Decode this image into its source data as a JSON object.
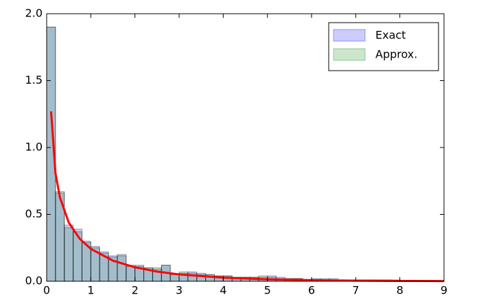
{
  "chart_data": {
    "type": "histogram",
    "bins": [
      0,
      0.2,
      0.4,
      0.6,
      0.8,
      1.0,
      1.2,
      1.4,
      1.6,
      1.8,
      2.0,
      2.2,
      2.4,
      2.6,
      2.8,
      3.0,
      3.2,
      3.4,
      3.6,
      3.8,
      4.0,
      4.2,
      4.4,
      4.6,
      4.8,
      5.0,
      5.2,
      5.4,
      5.6,
      5.8,
      6.0,
      6.2,
      6.4,
      6.6,
      6.8,
      7.0,
      7.2,
      7.4,
      7.6,
      7.8,
      8.0,
      8.2,
      8.4,
      8.6,
      8.8,
      9.0
    ],
    "series": [
      {
        "name": "Exact",
        "color": "#0000ff",
        "values": [
          1.9,
          0.66,
          0.42,
          0.39,
          0.3,
          0.26,
          0.22,
          0.19,
          0.2,
          0.12,
          0.12,
          0.1,
          0.09,
          0.12,
          0.05,
          0.06,
          0.07,
          0.06,
          0.05,
          0.04,
          0.04,
          0.03,
          0.03,
          0.03,
          0.03,
          0.04,
          0.03,
          0.02,
          0.02,
          0.01,
          0.02,
          0.01,
          0.02,
          0.01,
          0.01,
          0.01,
          0.01,
          0.01,
          0.01,
          0.01,
          0.005,
          0.005,
          0.005,
          0.005,
          0.005
        ]
      },
      {
        "name": "Approx.",
        "color": "#008000",
        "values": [
          1.9,
          0.67,
          0.4,
          0.37,
          0.29,
          0.25,
          0.21,
          0.18,
          0.19,
          0.11,
          0.11,
          0.1,
          0.1,
          0.12,
          0.05,
          0.07,
          0.06,
          0.05,
          0.05,
          0.04,
          0.04,
          0.03,
          0.03,
          0.03,
          0.04,
          0.03,
          0.02,
          0.02,
          0.02,
          0.01,
          0.01,
          0.02,
          0.01,
          0.01,
          0.01,
          0.01,
          0.01,
          0.01,
          0.01,
          0.005,
          0.005,
          0.005,
          0.005,
          0.005,
          0.005
        ]
      }
    ],
    "alpha": 0.2,
    "line": {
      "color": "#ff0000",
      "x": [
        0.1,
        0.2,
        0.3,
        0.5,
        0.75,
        1,
        1.5,
        2,
        2.5,
        3,
        4,
        5,
        6,
        7,
        8,
        9
      ],
      "values": [
        1.27,
        0.807,
        0.627,
        0.439,
        0.317,
        0.242,
        0.154,
        0.104,
        0.0723,
        0.0514,
        0.027,
        0.0146,
        0.0081,
        0.0046,
        0.0026,
        0.0015
      ]
    },
    "xlim": [
      0,
      9
    ],
    "xticks": [
      0,
      1,
      2,
      3,
      4,
      5,
      6,
      7,
      8,
      9
    ],
    "ylim": [
      0,
      2
    ],
    "yticks": [
      {
        "value": 0,
        "label": "0.0"
      },
      {
        "value": 0.5,
        "label": "0.5"
      },
      {
        "value": 1,
        "label": "1.0"
      },
      {
        "value": 1.5,
        "label": "1.5"
      },
      {
        "value": 2,
        "label": "2.0"
      }
    ],
    "legend": "upper right"
  }
}
